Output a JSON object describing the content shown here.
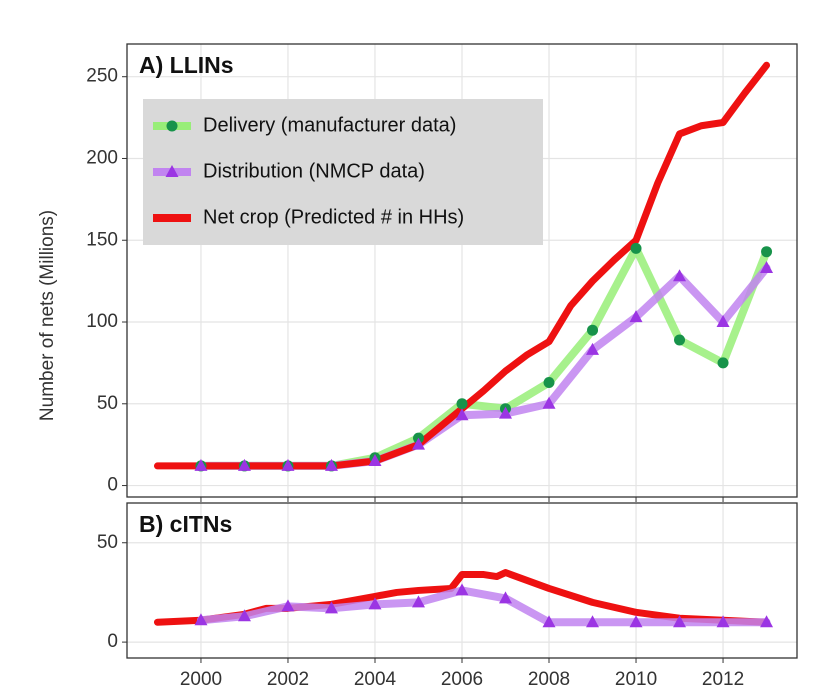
{
  "chart_data": [
    {
      "type": "line",
      "title": "A) LLINs",
      "ylabel": "Number of nets (Millions)",
      "xlim": [
        1998.3,
        2013.7
      ],
      "xticks": [
        2000,
        2002,
        2004,
        2006,
        2008,
        2010,
        2012
      ],
      "ylim": [
        -7,
        270
      ],
      "yticks": [
        0,
        50,
        100,
        150,
        200,
        250
      ],
      "grid": true,
      "legend": "upper left",
      "series": [
        {
          "name": "Delivery (manufacturer data)",
          "color": "#98ee78",
          "marker": "circle",
          "marker_color": "#17934a",
          "x": [
            2000,
            2001,
            2002,
            2003,
            2004,
            2005,
            2006,
            2007,
            2008,
            2009,
            2010,
            2011,
            2012,
            2013
          ],
          "values": [
            12,
            12,
            12,
            12,
            17,
            29,
            50,
            47,
            63,
            95,
            145,
            89,
            75,
            143
          ]
        },
        {
          "name": "Distribution (NMCP data)",
          "color": "#c184f0",
          "marker": "triangle",
          "marker_color": "#9b35e3",
          "x": [
            2000,
            2001,
            2002,
            2003,
            2004,
            2005,
            2006,
            2007,
            2008,
            2009,
            2010,
            2011,
            2012,
            2013
          ],
          "values": [
            12,
            12,
            12,
            12,
            15,
            25,
            43,
            44,
            50,
            83,
            103,
            128,
            100,
            133
          ]
        },
        {
          "name": "Net crop (Predicted # in HHs)",
          "color": "#ee1111",
          "x": [
            1999,
            2000,
            2001,
            2002,
            2003,
            2004,
            2005,
            2006,
            2006.5,
            2007,
            2007.5,
            2008,
            2008.5,
            2009,
            2009.5,
            2010,
            2010.5,
            2011,
            2011.5,
            2012,
            2012.5,
            2013
          ],
          "values": [
            12,
            12,
            12,
            12,
            12,
            15,
            25,
            47,
            58,
            70,
            80,
            88,
            110,
            125,
            138,
            150,
            185,
            215,
            220,
            222,
            240,
            257
          ]
        }
      ]
    },
    {
      "type": "line",
      "title": "B) cITNs",
      "xlim": [
        1998.3,
        2013.7
      ],
      "xticks": [
        2000,
        2002,
        2004,
        2006,
        2008,
        2010,
        2012
      ],
      "ylim": [
        -8,
        70
      ],
      "yticks": [
        0,
        50
      ],
      "grid": true,
      "series": [
        {
          "color": "#ee1111",
          "x": [
            1999,
            2000,
            2001,
            2001.5,
            2002,
            2003,
            2004,
            2004.5,
            2005,
            2005.75,
            2006,
            2006.5,
            2006.8,
            2007,
            2008,
            2009,
            2010,
            2011,
            2012,
            2013
          ],
          "values": [
            10,
            11,
            14,
            17,
            17,
            19,
            23,
            25,
            26,
            27,
            34,
            34,
            33,
            35,
            27,
            20,
            15,
            12,
            11,
            10
          ]
        },
        {
          "color": "#c184f0",
          "marker": "triangle",
          "marker_color": "#9b35e3",
          "x": [
            2000,
            2001,
            2002,
            2003,
            2004,
            2005,
            2006,
            2007,
            2008,
            2009,
            2010,
            2011,
            2012,
            2013
          ],
          "values": [
            11,
            13,
            18,
            17,
            19,
            20,
            26,
            22,
            10,
            10,
            10,
            10,
            10,
            10
          ]
        }
      ]
    }
  ]
}
